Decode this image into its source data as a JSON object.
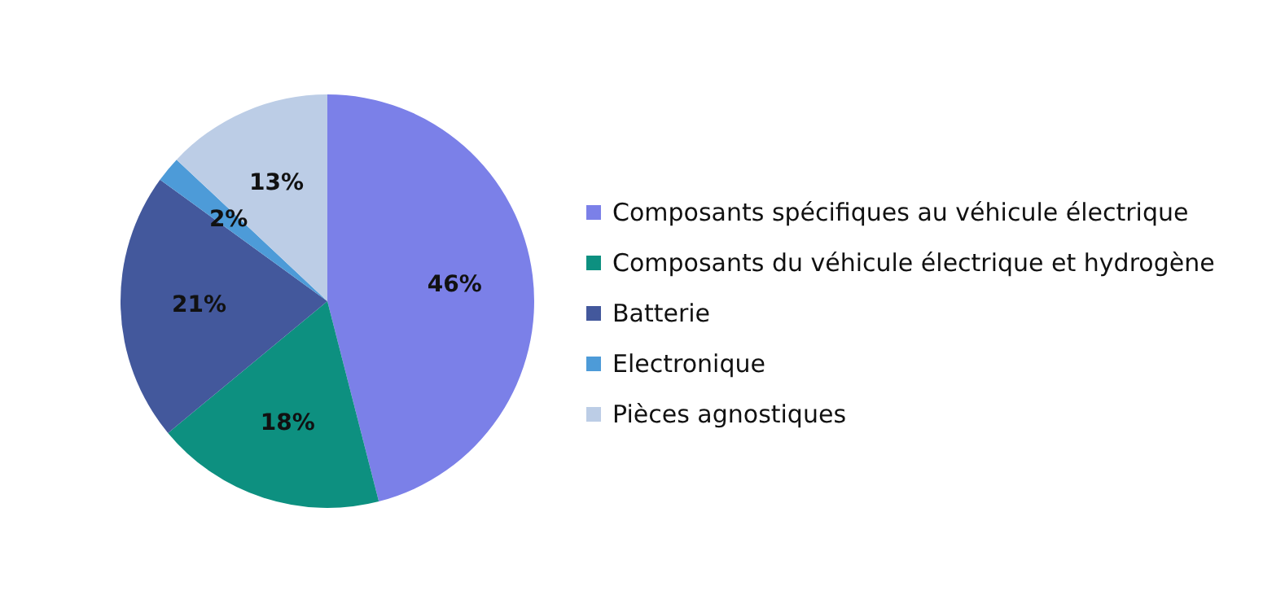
{
  "chart_data": {
    "type": "pie",
    "categories": [
      "Composants spécifiques au véhicule électrique",
      "Composants du véhicule électrique et hydrogène",
      "Batterie",
      "Electronique",
      "Pièces agnostiques"
    ],
    "values": [
      46,
      18,
      21,
      2,
      13
    ],
    "value_labels": [
      "46%",
      "18%",
      "21%",
      "2%",
      "13%"
    ],
    "colors": [
      "#7b80e8",
      "#0d9080",
      "#43589c",
      "#4d9bd8",
      "#bccde6"
    ],
    "legend": "right"
  }
}
